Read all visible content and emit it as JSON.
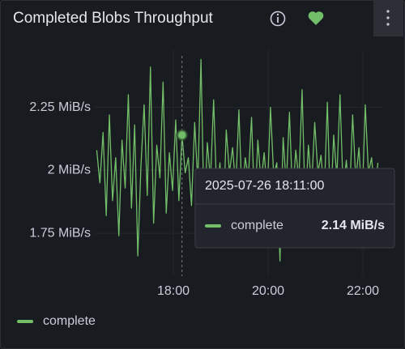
{
  "chart_data": {
    "type": "line",
    "title": "Completed Blobs Throughput",
    "x": [
      "16:23",
      "16:27",
      "16:31",
      "16:35",
      "16:39",
      "16:43",
      "16:47",
      "16:51",
      "16:55",
      "16:59",
      "17:03",
      "17:07",
      "17:11",
      "17:15",
      "17:19",
      "17:23",
      "17:27",
      "17:31",
      "17:35",
      "17:39",
      "17:43",
      "17:47",
      "17:51",
      "17:55",
      "17:59",
      "18:03",
      "18:07",
      "18:11",
      "18:15",
      "18:19",
      "18:23",
      "18:27",
      "18:31",
      "18:35",
      "18:39",
      "18:43",
      "18:47",
      "18:51",
      "18:55",
      "18:59",
      "19:03",
      "19:07",
      "19:11",
      "19:15",
      "19:19",
      "19:23",
      "19:27",
      "19:31",
      "19:35",
      "19:39",
      "19:43",
      "19:47",
      "19:51",
      "19:55",
      "19:59",
      "20:03",
      "20:07",
      "20:11",
      "20:15",
      "20:19",
      "20:23",
      "20:27",
      "20:31",
      "20:35",
      "20:39",
      "20:43",
      "20:47",
      "20:51",
      "20:55",
      "20:59",
      "21:03",
      "21:07",
      "21:11",
      "21:15",
      "21:19",
      "21:23",
      "21:27",
      "21:31",
      "21:35",
      "21:39",
      "21:43",
      "21:47",
      "21:51",
      "21:55",
      "21:59",
      "22:03",
      "22:07",
      "22:11",
      "22:15",
      "22:19"
    ],
    "series": [
      {
        "name": "complete",
        "color": "#73bf69",
        "values": [
          2.08,
          1.95,
          2.15,
          1.82,
          2.22,
          1.88,
          2.05,
          1.74,
          2.12,
          1.93,
          2.3,
          1.85,
          2.18,
          1.66,
          2.02,
          2.26,
          1.9,
          2.41,
          1.79,
          2.1,
          1.97,
          2.35,
          1.83,
          2.07,
          1.92,
          2.2,
          1.88,
          2.14,
          1.99,
          2.05,
          1.86,
          2.19,
          1.95,
          2.44,
          1.8,
          2.11,
          1.96,
          2.28,
          1.9,
          2.03,
          1.78,
          2.16,
          1.99,
          2.09,
          1.93,
          2.24,
          1.88,
          2.05,
          1.97,
          2.21,
          1.84,
          2.12,
          1.95,
          2.07,
          1.91,
          2.25,
          1.98,
          2.03,
          1.64,
          2.13,
          1.94,
          2.23,
          1.89,
          2.08,
          1.96,
          2.32,
          1.85,
          2.1,
          1.93,
          2.19,
          1.99,
          2.06,
          1.9,
          2.27,
          1.83,
          2.14,
          1.97,
          2.3,
          1.92,
          2.04,
          1.88,
          2.22,
          1.96,
          2.09,
          1.87,
          2.26,
          1.99,
          2.05,
          1.91,
          2.03
        ]
      }
    ],
    "xlim": [
      "16:20",
      "22:25"
    ],
    "xticks": [
      "18:00",
      "20:00",
      "22:00"
    ],
    "ylim": [
      1.58,
      2.48
    ],
    "yticks": [
      {
        "value": 1.75,
        "label": "1.75 MiB/s"
      },
      {
        "value": 2,
        "label": "2 MiB/s"
      },
      {
        "value": 2.25,
        "label": "2.25 MiB/s"
      }
    ],
    "tooltip": {
      "time": "2025-07-26 18:11:00",
      "x": "18:11",
      "series": "complete",
      "value": 2.14,
      "value_label": "2.14 MiB/s"
    }
  }
}
